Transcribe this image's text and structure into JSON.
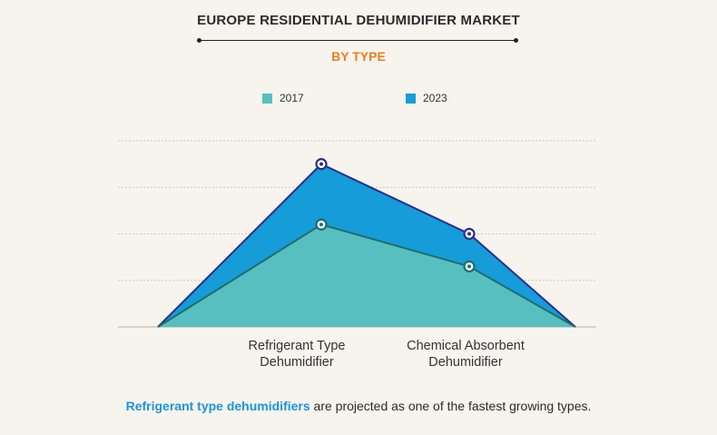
{
  "chart_data": {
    "type": "area",
    "title": "EUROPE RESIDENTIAL DEHUMIDIFIER MARKET",
    "subtitle": "BY TYPE",
    "categories": [
      "Refrigerant Type Dehumidifier",
      "Chemical Absorbent Dehumidifier"
    ],
    "series": [
      {
        "name": "2017",
        "color": "#57bfbf",
        "values": [
          2.2,
          1.3
        ]
      },
      {
        "name": "2023",
        "color": "#159cd9",
        "values": [
          3.5,
          2.0
        ]
      }
    ],
    "ylim": [
      0,
      4
    ],
    "grid": true,
    "legend_position": "top"
  },
  "category_label_lines": [
    [
      "Refrigerant Type",
      "Dehumidifier"
    ],
    [
      "Chemical Absorbent",
      "Dehumidifier"
    ]
  ],
  "footnote": {
    "highlight": "Refrigerant type dehumidifiers",
    "rest": " are projected as one of the fastest growing types."
  },
  "colors": {
    "accent_orange": "#f07d1a",
    "line_2023": "#2b2f8f",
    "line_2017": "#1f6e6b"
  }
}
